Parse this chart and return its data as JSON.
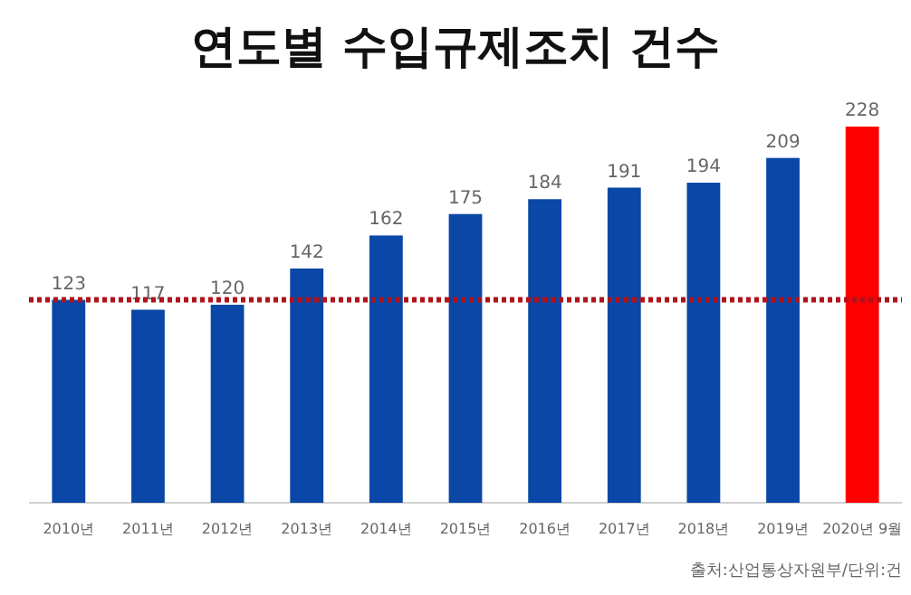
{
  "chart_data": {
    "type": "bar",
    "title": "연도별 수입규제조치 건수",
    "categories": [
      "2010년",
      "2011년",
      "2012년",
      "2013년",
      "2014년",
      "2015년",
      "2016년",
      "2017년",
      "2018년",
      "2019년",
      "2020년 9월"
    ],
    "values": [
      123,
      117,
      120,
      142,
      162,
      175,
      184,
      191,
      194,
      209,
      228
    ],
    "colors": [
      "#0a47a6",
      "#0a47a6",
      "#0a47a6",
      "#0a47a6",
      "#0a47a6",
      "#0a47a6",
      "#0a47a6",
      "#0a47a6",
      "#0a47a6",
      "#0a47a6",
      "#ff0000"
    ],
    "data_labels": true,
    "ref_lines": [
      {
        "axis": "y",
        "value": 123,
        "color": "#b0131a",
        "line_style": "dotted"
      }
    ],
    "annotations": [
      "출처:산업통상자원부/단위:건"
    ]
  }
}
